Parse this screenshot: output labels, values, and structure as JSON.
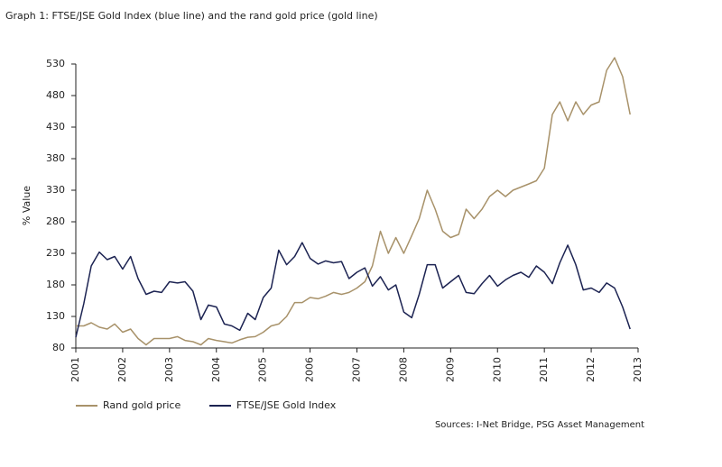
{
  "chart_data": {
    "type": "line",
    "title": "Graph 1:  FTSE/JSE Gold Index (blue line) and the rand gold price (gold line)",
    "y_label": "% Value",
    "source": "Sources: I-Net Bridge, PSG Asset Management",
    "x": [
      2001.0,
      2001.17,
      2001.33,
      2001.5,
      2001.67,
      2001.83,
      2002.0,
      2002.17,
      2002.33,
      2002.5,
      2002.67,
      2002.83,
      2003.0,
      2003.17,
      2003.33,
      2003.5,
      2003.67,
      2003.83,
      2004.0,
      2004.17,
      2004.33,
      2004.5,
      2004.67,
      2004.83,
      2005.0,
      2005.17,
      2005.33,
      2005.5,
      2005.67,
      2005.83,
      2006.0,
      2006.17,
      2006.33,
      2006.5,
      2006.67,
      2006.83,
      2007.0,
      2007.17,
      2007.33,
      2007.5,
      2007.67,
      2007.83,
      2008.0,
      2008.17,
      2008.33,
      2008.5,
      2008.67,
      2008.83,
      2009.0,
      2009.17,
      2009.33,
      2009.5,
      2009.67,
      2009.83,
      2010.0,
      2010.17,
      2010.33,
      2010.5,
      2010.67,
      2010.83,
      2011.0,
      2011.17,
      2011.33,
      2011.5,
      2011.67,
      2011.83,
      2012.0,
      2012.17,
      2012.33,
      2012.5,
      2012.67,
      2012.83
    ],
    "series": [
      {
        "name": "Rand gold price",
        "color": "#a8926a",
        "values": [
          115,
          115,
          120,
          113,
          110,
          118,
          105,
          110,
          95,
          85,
          95,
          95,
          95,
          98,
          92,
          90,
          85,
          95,
          92,
          90,
          88,
          93,
          97,
          98,
          105,
          115,
          118,
          130,
          152,
          152,
          160,
          158,
          162,
          168,
          165,
          168,
          175,
          185,
          210,
          265,
          230,
          255,
          230,
          258,
          285,
          330,
          300,
          265,
          255,
          260,
          300,
          285,
          300,
          320,
          330,
          320,
          330,
          335,
          340,
          345,
          365,
          450,
          470,
          440,
          470,
          450,
          465,
          470,
          520,
          540,
          510,
          450
        ]
      },
      {
        "name": "FTSE/JSE Gold Index",
        "color": "#1c2352",
        "values": [
          97,
          150,
          210,
          232,
          220,
          225,
          205,
          225,
          190,
          165,
          170,
          168,
          185,
          183,
          185,
          170,
          125,
          148,
          145,
          118,
          115,
          108,
          135,
          125,
          160,
          175,
          235,
          212,
          225,
          247,
          222,
          213,
          218,
          215,
          217,
          190,
          200,
          207,
          178,
          193,
          172,
          180,
          137,
          128,
          165,
          212,
          212,
          175,
          185,
          195,
          168,
          166,
          182,
          195,
          178,
          188,
          195,
          200,
          192,
          210,
          200,
          182,
          215,
          243,
          212,
          172,
          175,
          168,
          183,
          175,
          145,
          110
        ]
      }
    ],
    "xlim": [
      2001,
      2013
    ],
    "xticks": [
      2001,
      2002,
      2003,
      2004,
      2005,
      2006,
      2007,
      2008,
      2009,
      2010,
      2011,
      2012,
      2013
    ],
    "ylim": [
      80,
      530
    ],
    "yticks": [
      80,
      130,
      180,
      230,
      280,
      330,
      380,
      430,
      480,
      530
    ],
    "grid": false,
    "legend": "bottom"
  }
}
